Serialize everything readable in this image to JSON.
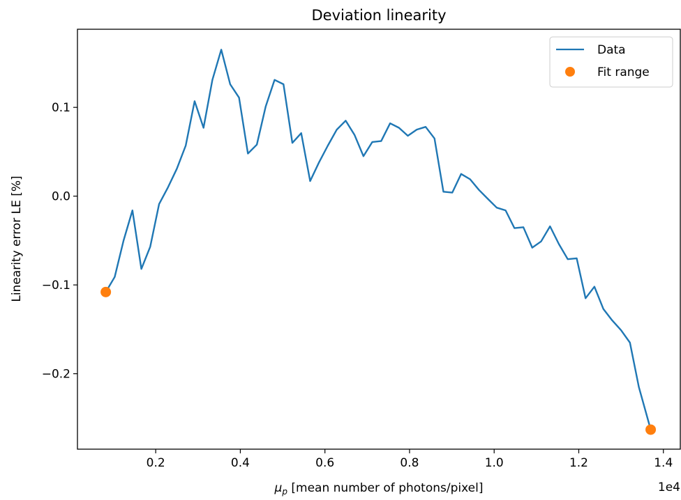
{
  "chart_data": {
    "type": "line",
    "title": "Deviation linearity",
    "xlabel_symbol": "μ",
    "xlabel_subscript": "p",
    "xlabel_rest": " [mean number of photons/pixel]",
    "ylabel": "Linearity error LE [%]",
    "x_offset_label": "1e4",
    "xlim": [
      150,
      14400
    ],
    "ylim": [
      -0.285,
      0.188
    ],
    "x_ticks": [
      2000,
      4000,
      6000,
      8000,
      10000,
      12000,
      14000
    ],
    "x_tick_labels": [
      "0.2",
      "0.4",
      "0.6",
      "0.8",
      "1.0",
      "1.2",
      "1.4"
    ],
    "y_ticks": [
      -0.2,
      -0.1,
      0.0,
      0.1
    ],
    "y_tick_labels": [
      "−0.2",
      "−0.1",
      "0.0",
      "0.1"
    ],
    "grid": false,
    "legend_position": "top-right",
    "series": [
      {
        "name": "Data",
        "color": "#1f77b4",
        "style": "line",
        "x": [
          820,
          1030,
          1240,
          1450,
          1660,
          1870,
          2080,
          2290,
          2500,
          2710,
          2920,
          3130,
          3340,
          3550,
          3760,
          3970,
          4180,
          4390,
          4600,
          4810,
          5020,
          5230,
          5440,
          5650,
          5860,
          6070,
          6280,
          6490,
          6700,
          6910,
          7120,
          7330,
          7540,
          7750,
          7960,
          8170,
          8380,
          8590,
          8800,
          9010,
          9220,
          9430,
          9640,
          9850,
          10060,
          10270,
          10480,
          10690,
          10900,
          11110,
          11320,
          11530,
          11740,
          11950,
          12160,
          12370,
          12580,
          12790,
          13000,
          13210,
          13420,
          13700
        ],
        "y": [
          -0.108,
          -0.091,
          -0.05,
          -0.016,
          -0.082,
          -0.057,
          -0.009,
          0.01,
          0.031,
          0.057,
          0.107,
          0.077,
          0.131,
          0.165,
          0.126,
          0.111,
          0.048,
          0.058,
          0.101,
          0.131,
          0.126,
          0.06,
          0.071,
          0.017,
          0.038,
          0.057,
          0.075,
          0.085,
          0.069,
          0.045,
          0.061,
          0.062,
          0.082,
          0.077,
          0.068,
          0.075,
          0.078,
          0.065,
          0.005,
          0.004,
          0.025,
          0.019,
          0.007,
          -0.003,
          -0.013,
          -0.016,
          -0.036,
          -0.035,
          -0.058,
          -0.051,
          -0.034,
          -0.054,
          -0.071,
          -0.07,
          -0.115,
          -0.102,
          -0.127,
          -0.14,
          -0.151,
          -0.165,
          -0.215,
          -0.263
        ]
      },
      {
        "name": "Fit range",
        "color": "#ff7f0e",
        "style": "markers",
        "x": [
          820,
          13700
        ],
        "y": [
          -0.108,
          -0.263
        ]
      }
    ]
  }
}
